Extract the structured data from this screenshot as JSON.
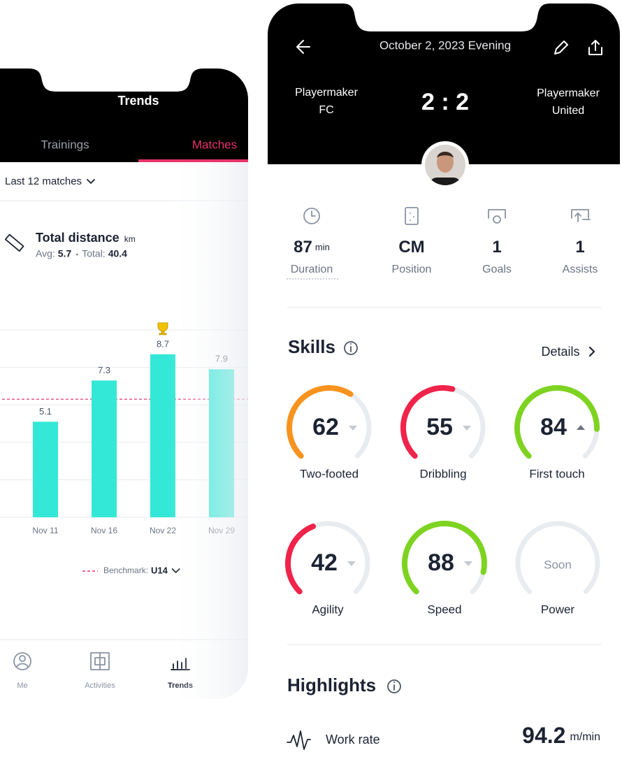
{
  "left_screen": {
    "title": "Trends",
    "tabs": [
      "Trainings",
      "Matches"
    ],
    "filter": "Last 12 matches",
    "metric": {
      "name": "Total distance",
      "unit": "km",
      "avg_label": "Avg:",
      "avg": 5.7,
      "total_label": "Total:",
      "total": 40.4
    },
    "chart_data": {
      "type": "bar",
      "categories": [
        "Nov 11",
        "Nov 16",
        "Nov 22",
        "Nov 29"
      ],
      "values": [
        5.1,
        7.3,
        8.7,
        7.9
      ],
      "color": "#33e8d6",
      "ylim": [
        0,
        10
      ],
      "yticks": [
        0,
        2,
        4,
        6,
        8,
        10
      ],
      "grid": true,
      "benchmark": {
        "label": "Benchmark:",
        "name": "U14",
        "value": 6.3,
        "color": "#e8336b"
      }
    },
    "nav": [
      "Me",
      "Activities",
      "Trends"
    ]
  },
  "right_screen": {
    "date": "October 2, 2023 Evening",
    "home_team": [
      "Playermaker",
      "FC"
    ],
    "away_team": [
      "Playermaker",
      "United"
    ],
    "score": "2 : 2",
    "stats": [
      {
        "value": 87,
        "unit": "min",
        "label": "Duration"
      },
      {
        "value": "CM",
        "label": "Position"
      },
      {
        "value": 1,
        "label": "Goals"
      },
      {
        "value": 1,
        "label": "Assists"
      }
    ],
    "skills_title": "Skills",
    "details": "Details",
    "skills": [
      {
        "name": "Two-footed",
        "value": 62,
        "color": "#f7931e",
        "trend": "down"
      },
      {
        "name": "Dribbling",
        "value": 55,
        "color": "#f0234a",
        "trend": "down"
      },
      {
        "name": "First touch",
        "value": 84,
        "color": "#7ed321",
        "trend": "up"
      },
      {
        "name": "Agility",
        "value": 42,
        "color": "#f0234a",
        "trend": "down"
      },
      {
        "name": "Speed",
        "value": 88,
        "color": "#7ed321",
        "trend": "down"
      },
      {
        "name": "Power",
        "status": "Soon"
      }
    ],
    "highlights_title": "Highlights",
    "highlights": [
      {
        "name": "Work rate",
        "value": 94.2,
        "unit": "m/min"
      }
    ]
  }
}
